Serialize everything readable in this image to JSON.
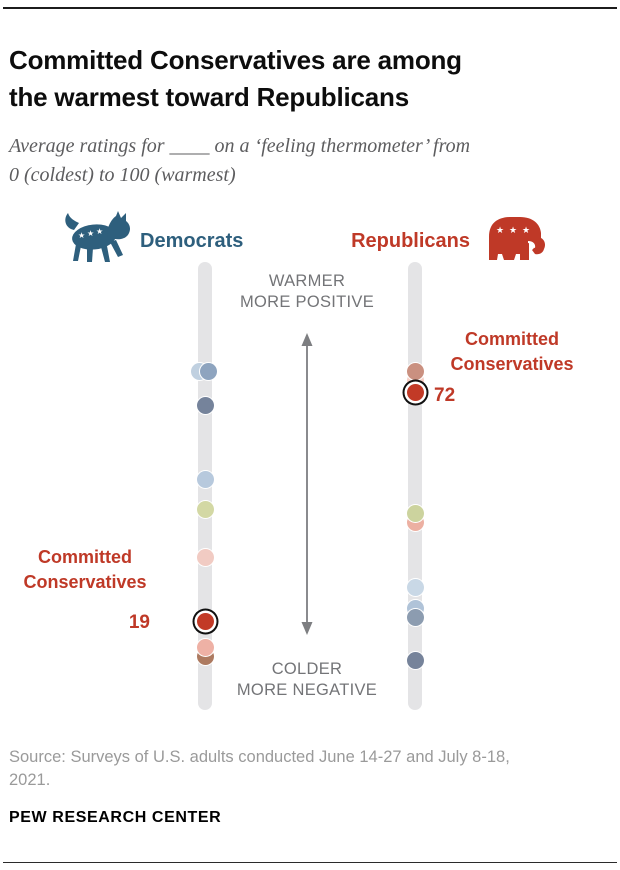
{
  "header": {
    "title_line1": "Committed Conservatives are among",
    "title_line2": "the warmest toward Republicans",
    "subtitle_line1": "Average ratings for ____ on a ‘feeling thermometer’ from",
    "subtitle_line2": "0 (coldest) to 100 (warmest)"
  },
  "chart": {
    "democrats_label": "Democrats",
    "republicans_label": "Republicans",
    "icons": {
      "democrats": "donkey-icon",
      "republicans": "elephant-icon"
    },
    "warmer_line1": "WARMER",
    "warmer_line2": "MORE POSITIVE",
    "colder_line1": "COLDER",
    "colder_line2": "MORE NEGATIVE",
    "dem_annotation": {
      "line1": "Committed",
      "line2": "Conservatives",
      "value": "19"
    },
    "rep_annotation": {
      "line1": "Committed",
      "line2": "Conservatives",
      "value": "72"
    }
  },
  "chart_data": {
    "type": "scatter",
    "title": "Committed Conservatives are among the warmest toward Republicans",
    "subtitle": "Average ratings for ____ on a ‘feeling thermometer’ from 0 (coldest) to 100 (warmest)",
    "axis": {
      "min": 0,
      "max": 100,
      "top_label": "WARMER MORE POSITIVE",
      "bottom_label": "COLDER MORE NEGATIVE",
      "orientation": "vertical"
    },
    "columns": [
      {
        "party": "Democrats",
        "party_color": "#2e5f7d",
        "points": [
          {
            "value": 77,
            "color": "#c0d0e0",
            "dx": -6.5
          },
          {
            "value": 77,
            "color": "#8ea4bf",
            "dx": 2.5
          },
          {
            "value": 69,
            "color": "#75839b",
            "dx": 0
          },
          {
            "value": 52,
            "color": "#b7c9dd",
            "dx": 0
          },
          {
            "value": 45,
            "color": "#d3d8a4",
            "dx": 0
          },
          {
            "value": 34,
            "color": "#f1cbc3",
            "dx": 0
          },
          {
            "value": 11,
            "color": "#ad7a60",
            "dx": 0
          },
          {
            "value": 13,
            "color": "#eeb1a5",
            "dx": 0
          },
          {
            "value": 19,
            "color": "#c23a27",
            "dx": 0,
            "highlight": true,
            "label": "Committed Conservatives"
          }
        ]
      },
      {
        "party": "Republicans",
        "party_color": "#bf3927",
        "points": [
          {
            "value": 75,
            "color": "#f6cfc5",
            "dx": 0
          },
          {
            "value": 77,
            "color": "#ca9080",
            "dx": 0
          },
          {
            "value": 72,
            "color": "#c23a27",
            "dx": 0,
            "highlight": true,
            "label": "Committed Conservatives"
          },
          {
            "value": 42,
            "color": "#ecb0a2",
            "dx": 0
          },
          {
            "value": 44,
            "color": "#ccd39e",
            "dx": 0
          },
          {
            "value": 27,
            "color": "#c9d8e6",
            "dx": 0
          },
          {
            "value": 22,
            "color": "#b0c3d8",
            "dx": 0
          },
          {
            "value": 20,
            "color": "#8c9cb0",
            "dx": 0
          },
          {
            "value": 10,
            "color": "#76839a",
            "dx": 0
          }
        ]
      }
    ],
    "highlighted_values": [
      {
        "party": "Democrats",
        "group": "Committed Conservatives",
        "value": 19
      },
      {
        "party": "Republicans",
        "group": "Committed Conservatives",
        "value": 72
      }
    ],
    "track_color": "#e4e4e6"
  },
  "footer": {
    "source_line1": "Source: Surveys of U.S. adults conducted June 14-27 and July 8-18,",
    "source_line2": "2021.",
    "brand": "PEW RESEARCH CENTER"
  }
}
